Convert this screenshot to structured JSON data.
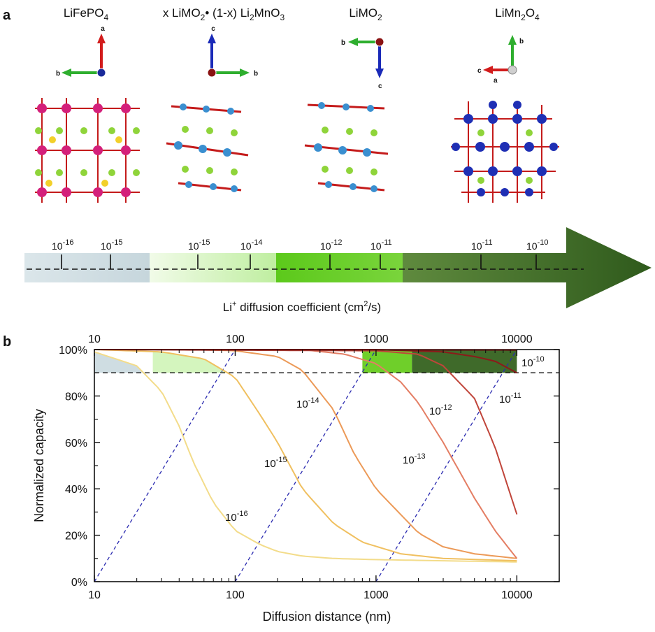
{
  "panel_a": {
    "label": "a",
    "materials": [
      {
        "name_parts": [
          "LiFePO",
          "4"
        ],
        "axes": [
          "a",
          "b"
        ]
      },
      {
        "name_parts": [
          "x LiMO",
          "2",
          "• (1-x) Li",
          "2",
          "MnO",
          "3"
        ],
        "axes": [
          "c",
          "b"
        ]
      },
      {
        "name_parts": [
          "LiMO",
          "2"
        ],
        "axes": [
          "b",
          "c"
        ]
      },
      {
        "name_parts": [
          "LiMn",
          "2",
          "O",
          "4"
        ],
        "axes": [
          "b",
          "c",
          "a"
        ]
      }
    ],
    "scale_ticks": [
      {
        "exp": "-16"
      },
      {
        "exp": "-15"
      },
      {
        "exp": "-15"
      },
      {
        "exp": "-14"
      },
      {
        "exp": "-12"
      },
      {
        "exp": "-11"
      },
      {
        "exp": "-11"
      },
      {
        "exp": "-10"
      }
    ],
    "arrow_title": {
      "pre": "Li",
      "sup1": "+",
      "mid": " diffusion coefficient (cm",
      "sup2": "2",
      "post": "/s)"
    },
    "colors": {
      "seg1": "#cfdde2",
      "seg2": "#e6f8d8",
      "seg3": "#6fcf2a",
      "seg4": "#4a7a30",
      "arrow_head": "#2f5a1c"
    }
  },
  "panel_b": {
    "label": "b"
  },
  "chart_data": {
    "type": "line",
    "title": "",
    "xlabel": "Diffusion distance (nm)",
    "ylabel": "Normalized capacity",
    "xscale": "log",
    "xlim": [
      10,
      20000
    ],
    "ylim": [
      0,
      100
    ],
    "x_ticks": [
      10,
      100,
      1000,
      10000
    ],
    "x_tick_labels": [
      "10",
      "100",
      "1000",
      "10000"
    ],
    "top_x_tick_labels": [
      "10",
      "100",
      "1000",
      "10000"
    ],
    "y_ticks": [
      0,
      20,
      40,
      60,
      80,
      100
    ],
    "y_tick_labels": [
      "0%",
      "20%",
      "40%",
      "60%",
      "80%",
      "100%"
    ],
    "threshold": 90,
    "series": [
      {
        "name": "10^-16",
        "base": "10",
        "exp": "-16",
        "color": "#f3dc8a",
        "x": [
          10,
          20,
          30,
          40,
          50,
          70,
          100,
          150,
          200,
          300,
          500,
          1000,
          3000,
          10000
        ],
        "y": [
          99,
          93,
          82,
          67,
          52,
          34,
          22,
          16,
          13,
          11,
          10,
          9.5,
          9,
          8.5
        ]
      },
      {
        "name": "10^-15",
        "base": "10",
        "exp": "-15",
        "color": "#f0c060",
        "x": [
          10,
          30,
          60,
          100,
          150,
          200,
          300,
          500,
          800,
          1500,
          3000,
          10000
        ],
        "y": [
          100,
          99,
          96,
          88,
          72,
          60,
          40,
          25,
          17,
          12,
          10,
          9
        ]
      },
      {
        "name": "10^-14",
        "base": "10",
        "exp": "-14",
        "color": "#ec9a58",
        "x": [
          10,
          50,
          100,
          200,
          300,
          500,
          700,
          1000,
          2000,
          3000,
          5000,
          10000
        ],
        "y": [
          100,
          100,
          99.5,
          97,
          91,
          74,
          55,
          40,
          21,
          15,
          12,
          10
        ]
      },
      {
        "name": "10^-13",
        "base": "10",
        "exp": "-13",
        "color": "#e47e64",
        "x": [
          10,
          300,
          600,
          1000,
          1500,
          2000,
          3000,
          5000,
          7000,
          10000
        ],
        "y": [
          100,
          100,
          98,
          94,
          86,
          77,
          60,
          36,
          22,
          10
        ]
      },
      {
        "name": "10^-12",
        "base": "10",
        "exp": "-12",
        "color": "#c0453a",
        "x": [
          10,
          1000,
          2000,
          3000,
          5000,
          7000,
          10000
        ],
        "y": [
          100,
          99.5,
          98,
          93,
          79,
          58,
          29
        ]
      },
      {
        "name": "10^-11",
        "base": "10",
        "exp": "-11",
        "color": "#8c1a1a",
        "x": [
          10,
          1000,
          3000,
          5000,
          7000,
          10000
        ],
        "y": [
          100,
          100,
          99,
          97,
          95,
          90
        ]
      },
      {
        "name": "10^-10",
        "base": "10",
        "exp": "-10",
        "color": "#5a1010",
        "x": [
          10,
          10000
        ],
        "y": [
          100,
          99.8
        ]
      }
    ],
    "shaded_regions": [
      {
        "x0": 10,
        "x1": 26,
        "color": "#cfdde2"
      },
      {
        "x0": 26,
        "x1": 200,
        "color": "#d4f5be"
      },
      {
        "x0": 800,
        "x1": 1800,
        "color": "#6fcf2a"
      },
      {
        "x0": 1800,
        "x1": 10000,
        "color": "#3f6a2a"
      }
    ],
    "dashed_lines": [
      {
        "x0": 10,
        "y0": 0,
        "x1": 100,
        "y1": 100
      },
      {
        "x0": 100,
        "y0": 0,
        "x1": 1000,
        "y1": 100
      },
      {
        "x0": 1000,
        "y0": 0,
        "x1": 10000,
        "y1": 100
      }
    ]
  }
}
